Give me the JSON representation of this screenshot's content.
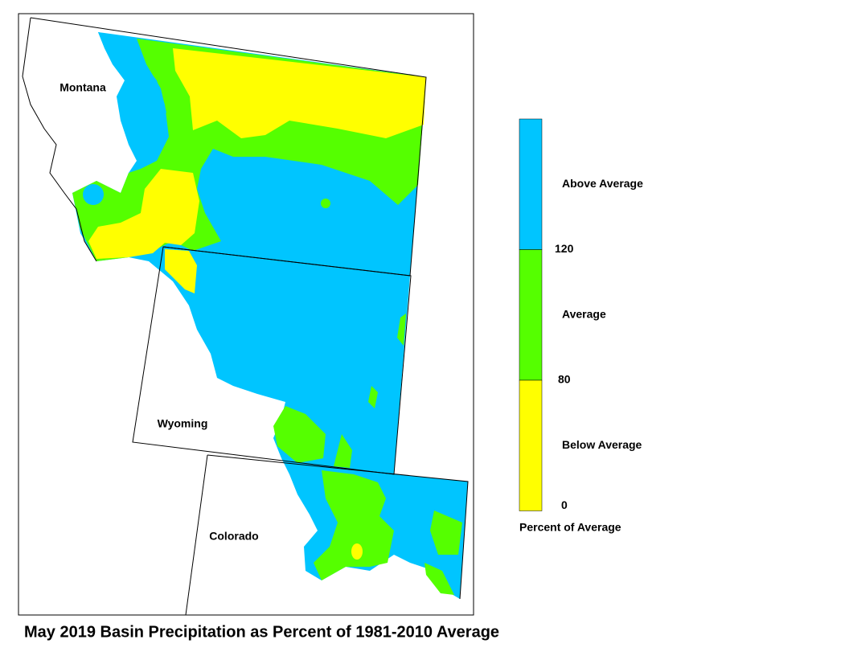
{
  "title": "May 2019 Basin Precipitation as Percent of 1981-2010 Average",
  "states": [
    {
      "label": "Montana"
    },
    {
      "label": "Wyoming"
    },
    {
      "label": "Colorado"
    }
  ],
  "legend": {
    "title": "Percent of Average",
    "classes": [
      {
        "label": "Above Average",
        "color": "#00c5ff"
      },
      {
        "label": "Average",
        "color": "#55ff00"
      },
      {
        "label": "Below Average",
        "color": "#ffff00"
      }
    ],
    "ticks": [
      120,
      80,
      0
    ]
  }
}
